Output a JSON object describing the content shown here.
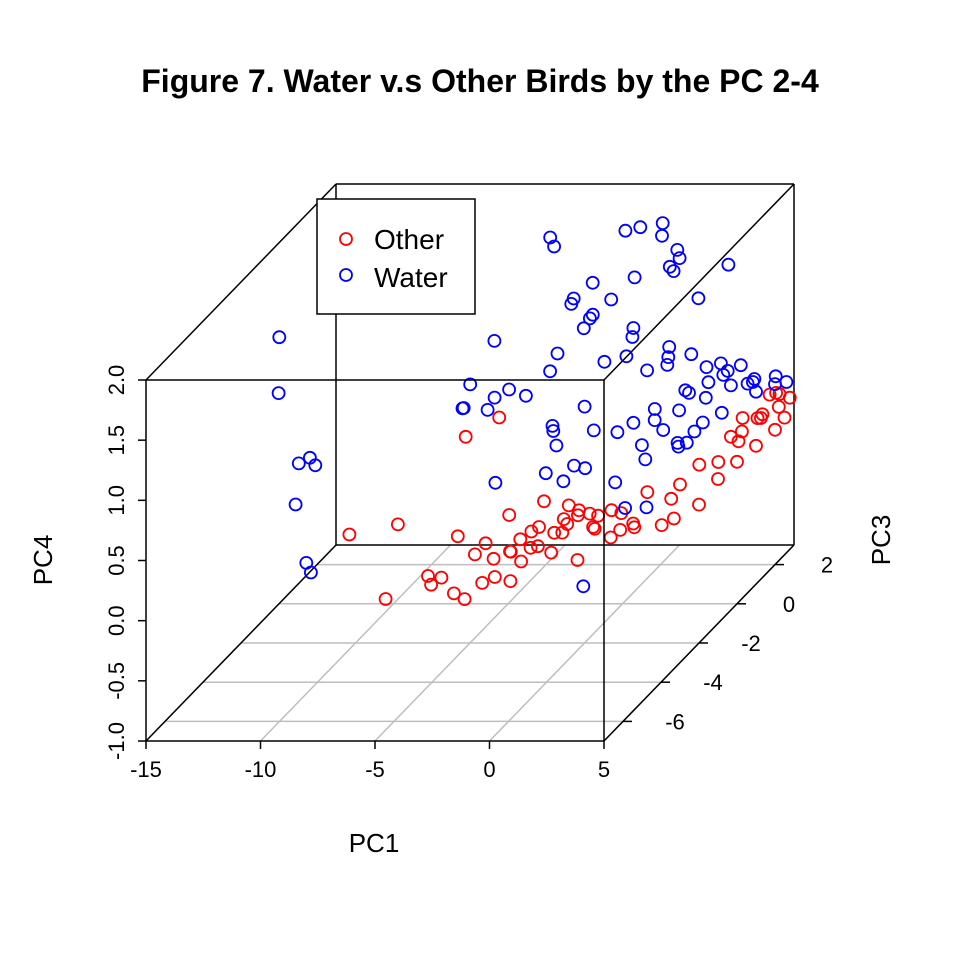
{
  "chart_data": {
    "type": "scatter",
    "title": "Figure 7. Water v.s Other Birds by the PC 2-4",
    "xlabel": "PC1",
    "ylabel": "PC3",
    "zlabel": "PC4",
    "xlim": [
      -15,
      5
    ],
    "ylim": [
      -7,
      3
    ],
    "zlim": [
      -1,
      2
    ],
    "xticks": [
      "-15",
      "-10",
      "-5",
      "0",
      "5"
    ],
    "yticks": [
      "-6",
      "-4",
      "-2",
      "0",
      "2"
    ],
    "zticks": [
      "-1.0",
      "-0.5",
      "0.0",
      "0.5",
      "1.0",
      "1.5",
      "2.0"
    ],
    "grid": "floor",
    "legend_position": "top-left",
    "series": [
      {
        "name": "Other",
        "color": "#ff0000",
        "marker": "open-circle",
        "points": [
          [
            -6.2,
            -6.9,
            0.7
          ],
          [
            -5.2,
            -6.2,
            0.05
          ],
          [
            -4.0,
            -7.0,
            0.8
          ],
          [
            -3.1,
            -6.5,
            0.29
          ],
          [
            -2.8,
            -6.7,
            0.25
          ],
          [
            -2.6,
            -6.4,
            0.26
          ],
          [
            -2.3,
            -6.1,
            0.08
          ],
          [
            -2.0,
            -5.9,
            0.0
          ],
          [
            -1.8,
            -6.5,
            0.62
          ],
          [
            -1.3,
            -6.2,
            0.42
          ],
          [
            -1.0,
            -6.0,
            0.48
          ],
          [
            -0.9,
            -6.3,
            0.2
          ],
          [
            -0.6,
            -6.0,
            0.2
          ],
          [
            -0.4,
            -6.3,
            0.4
          ],
          [
            -0.3,
            -5.6,
            0.65
          ],
          [
            -0.1,
            -5.8,
            0.38
          ],
          [
            0.0,
            -5.9,
            0.15
          ],
          [
            0.1,
            -6.0,
            0.41
          ],
          [
            0.3,
            -5.7,
            0.28
          ],
          [
            0.5,
            -5.4,
            0.48
          ],
          [
            0.6,
            -6.1,
            0.53
          ],
          [
            0.8,
            -5.8,
            0.41
          ],
          [
            1.0,
            -5.6,
            0.55
          ],
          [
            1.2,
            -5.9,
            0.44
          ],
          [
            1.3,
            -5.7,
            0.78
          ],
          [
            1.5,
            -5.4,
            0.47
          ],
          [
            1.7,
            -5.8,
            0.37
          ],
          [
            1.9,
            -5.2,
            0.51
          ],
          [
            2.0,
            -5.5,
            0.6
          ],
          [
            2.1,
            -5.7,
            0.52
          ],
          [
            2.2,
            -5.0,
            0.55
          ],
          [
            2.3,
            -5.6,
            0.73
          ],
          [
            2.5,
            -5.3,
            0.64
          ],
          [
            2.6,
            -5.5,
            0.26
          ],
          [
            2.7,
            -4.8,
            0.42
          ],
          [
            2.8,
            -5.1,
            0.58
          ],
          [
            3.0,
            -4.9,
            0.53
          ],
          [
            3.1,
            -5.2,
            0.47
          ],
          [
            3.3,
            -4.6,
            0.3
          ],
          [
            3.5,
            -4.8,
            0.56
          ],
          [
            3.6,
            -4.4,
            0.47
          ],
          [
            3.8,
            -4.7,
            0.38
          ],
          [
            4.0,
            -4.2,
            0.32
          ],
          [
            4.2,
            -4.5,
            0.4
          ],
          [
            4.4,
            -4.0,
            0.58
          ],
          [
            -1.4,
            -4.8,
            1.33
          ],
          [
            -2.2,
            -5.6,
            1.3
          ],
          [
            4.7,
            -3.6,
            0.24
          ],
          [
            4.9,
            -3.2,
            0.23
          ],
          [
            5.0,
            -3.0,
            0.48
          ],
          [
            5.0,
            -2.0,
            0.15
          ],
          [
            5.0,
            -1.0,
            0.2
          ],
          [
            5.0,
            0.0,
            0.18
          ],
          [
            5.0,
            1.0,
            0.15
          ],
          [
            5.0,
            2.0,
            0.12
          ],
          [
            5.0,
            2.5,
            0.14
          ],
          [
            4.8,
            0.5,
            0.35
          ],
          [
            4.8,
            1.5,
            0.3
          ],
          [
            4.6,
            -1.5,
            0.4
          ],
          [
            4.6,
            -0.5,
            0.26
          ],
          [
            4.4,
            0.8,
            0.22
          ],
          [
            4.4,
            1.8,
            0.25
          ],
          [
            4.2,
            -2.5,
            0.28
          ],
          [
            4.2,
            2.3,
            0.2
          ],
          [
            4.9,
            -0.2,
            0.42
          ],
          [
            4.7,
            2.6,
            0.32
          ],
          [
            4.5,
            2.8,
            0.18
          ],
          [
            4.3,
            2.9,
            0.28
          ],
          [
            4.9,
            2.9,
            0.24
          ],
          [
            4.6,
            2.2,
            0.38
          ],
          [
            4.0,
            1.5,
            0.3
          ]
        ]
      },
      {
        "name": "Water",
        "color": "#0000ff",
        "marker": "open-circle",
        "points": [
          [
            -11.5,
            -4.2,
            1.9
          ],
          [
            -11.2,
            -4.6,
            1.5
          ],
          [
            -10.4,
            -4.5,
            0.9
          ],
          [
            -10.0,
            -4.4,
            0.93
          ],
          [
            -9.6,
            -4.6,
            0.9
          ],
          [
            -8.8,
            -6.6,
            0.9
          ],
          [
            -8.0,
            -7.0,
            0.48
          ],
          [
            -7.8,
            -7.0,
            0.4
          ],
          [
            -4.6,
            -1.2,
            1.38
          ],
          [
            -4.0,
            -3.6,
            1.21
          ],
          [
            -3.4,
            -3.0,
            1.1
          ],
          [
            -3.2,
            -4.5,
            1.36
          ],
          [
            -3.0,
            -4.4,
            1.54
          ],
          [
            -2.6,
            -3.6,
            1.3
          ],
          [
            -1.8,
            -3.8,
            1.4
          ],
          [
            -1.4,
            -5.0,
            0.82
          ],
          [
            -0.9,
            -4.0,
            1.38
          ],
          [
            -0.6,
            -2.7,
            1.52
          ],
          [
            -0.4,
            -3.2,
            1.0
          ],
          [
            -0.2,
            -3.4,
            0.99
          ],
          [
            0.3,
            -2.4,
            1.68
          ],
          [
            0.4,
            -2.2,
            1.73
          ],
          [
            0.6,
            -4.2,
            1.0
          ],
          [
            0.8,
            -5.0,
            0.9
          ],
          [
            1.0,
            -3.2,
            1.16
          ],
          [
            1.2,
            -4.0,
            0.8
          ],
          [
            1.4,
            -4.8,
            0.8
          ],
          [
            1.5,
            -2.4,
            1.92
          ],
          [
            1.7,
            -3.0,
            1.5
          ],
          [
            1.9,
            -3.8,
            1.06
          ],
          [
            2.1,
            -4.5,
            0.86
          ],
          [
            2.3,
            -2.2,
            1.65
          ],
          [
            2.4,
            -1.6,
            1.2
          ],
          [
            2.6,
            -3.4,
            0.98
          ],
          [
            2.8,
            -2.8,
            0.96
          ],
          [
            3.0,
            -4.0,
            0.66
          ],
          [
            3.1,
            -5.8,
            0.09
          ],
          [
            3.2,
            -1.5,
            1.23
          ],
          [
            3.4,
            -2.4,
            1.01
          ],
          [
            3.5,
            -3.2,
            0.84
          ],
          [
            3.6,
            -4.2,
            0.48
          ],
          [
            3.7,
            -2.0,
            1.46
          ],
          [
            3.9,
            -3.5,
            0.77
          ],
          [
            4.0,
            -1.2,
            1.27
          ],
          [
            4.1,
            -2.8,
            0.9
          ],
          [
            4.2,
            -3.8,
            0.42
          ],
          [
            4.4,
            -2.0,
            1.1
          ],
          [
            4.5,
            -1.0,
            1.13
          ],
          [
            4.6,
            -2.6,
            0.73
          ],
          [
            4.8,
            -1.4,
            0.94
          ],
          [
            4.9,
            -0.6,
            1.0
          ],
          [
            5.0,
            -1.8,
            0.8
          ],
          [
            5.0,
            0.2,
            0.95
          ],
          [
            4.8,
            0.8,
            0.7
          ],
          [
            4.6,
            1.4,
            0.64
          ],
          [
            5.0,
            1.0,
            0.6
          ],
          [
            5.0,
            2.0,
            0.5
          ],
          [
            4.4,
            0.4,
            0.75
          ],
          [
            4.2,
            1.8,
            0.55
          ],
          [
            4.0,
            -0.3,
            0.89
          ],
          [
            3.8,
            0.6,
            0.9
          ],
          [
            3.6,
            1.2,
            0.74
          ],
          [
            3.4,
            -0.6,
            0.85
          ],
          [
            5.0,
            2.6,
            0.42
          ],
          [
            4.7,
            2.4,
            0.5
          ],
          [
            4.5,
            -0.2,
            0.62
          ],
          [
            3.9,
            -1.8,
            0.63
          ],
          [
            3.3,
            -1.0,
            0.77
          ],
          [
            4.3,
            -1.4,
            0.66
          ],
          [
            4.8,
            -2.4,
            0.73
          ],
          [
            2.9,
            -1.8,
            0.82
          ],
          [
            1.4,
            0.8,
            1.67
          ],
          [
            1.9,
            0.4,
            1.7
          ],
          [
            2.4,
            1.1,
            1.36
          ],
          [
            2.8,
            2.2,
            1.46
          ],
          [
            1.0,
            1.8,
            1.58
          ],
          [
            0.4,
            2.4,
            1.55
          ],
          [
            -0.3,
            1.0,
            1.55
          ],
          [
            -4.4,
            1.5,
            1.8
          ],
          [
            -3.9,
            1.1,
            1.79
          ],
          [
            -1.2,
            1.6,
            1.84
          ],
          [
            -0.8,
            1.9,
            1.82
          ],
          [
            -0.4,
            2.6,
            1.74
          ],
          [
            -0.1,
            2.2,
            1.7
          ],
          [
            -1.3,
            -1.0,
            1.7
          ],
          [
            -0.8,
            -0.6,
            1.5
          ],
          [
            -1.8,
            0.6,
            1.57
          ],
          [
            1.0,
            -1.0,
            1.22
          ],
          [
            0.6,
            -0.2,
            1.25
          ],
          [
            2.0,
            0.0,
            1.05
          ],
          [
            -2.4,
            0.2,
            1.46
          ],
          [
            -2.0,
            -1.4,
            1.16
          ]
        ]
      }
    ]
  }
}
